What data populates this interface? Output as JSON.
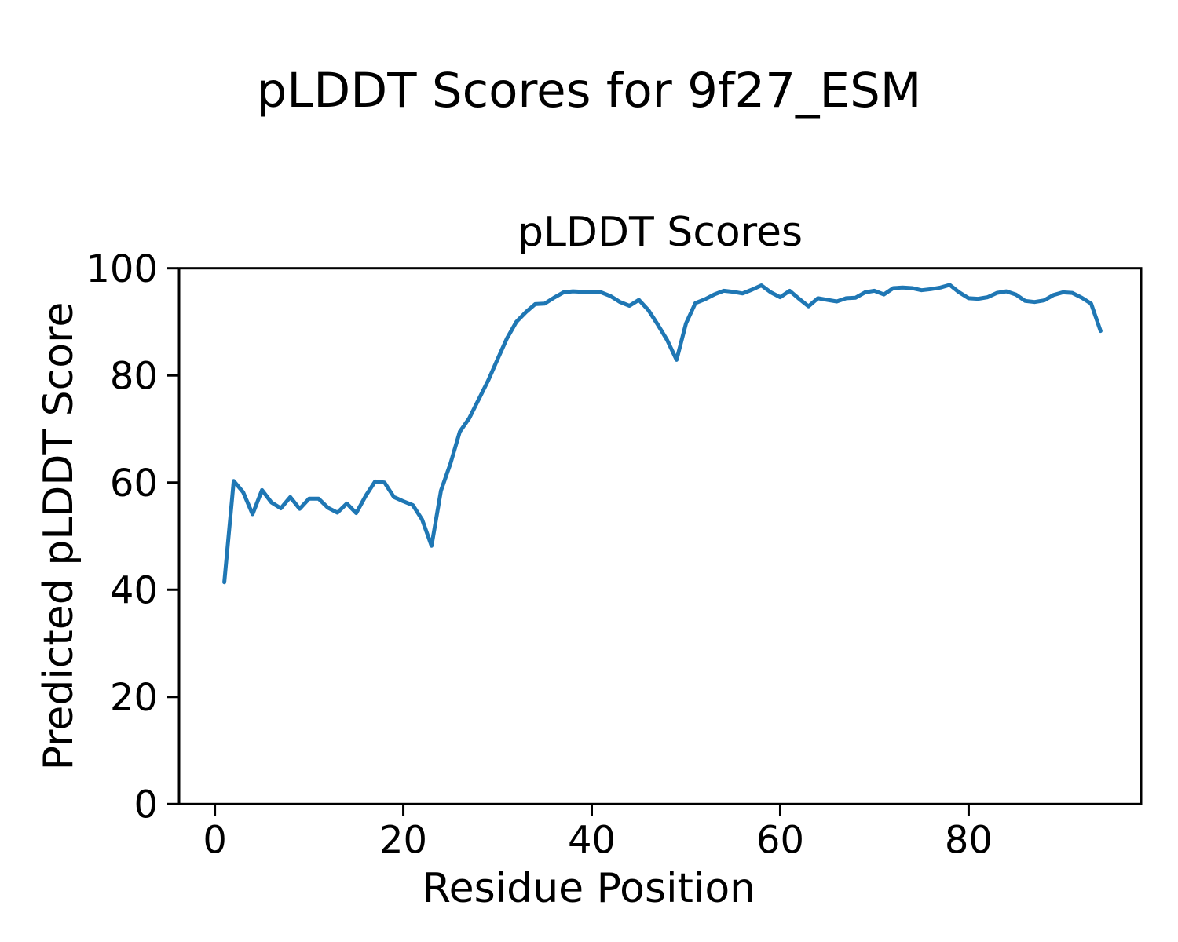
{
  "chart_data": {
    "type": "line",
    "title": "pLDDT Scores for 9f27_ESM",
    "axes_title": "pLDDT Scores",
    "xlabel": "Residue Position",
    "ylabel": "Predicted pLDDT Score",
    "x": [
      1,
      2,
      3,
      4,
      5,
      6,
      7,
      8,
      9,
      10,
      11,
      12,
      13,
      14,
      15,
      16,
      17,
      18,
      19,
      20,
      21,
      22,
      23,
      24,
      25,
      26,
      27,
      28,
      29,
      30,
      31,
      32,
      33,
      34,
      35,
      36,
      37,
      38,
      39,
      40,
      41,
      42,
      43,
      44,
      45,
      46,
      47,
      48,
      49,
      50,
      51,
      52,
      53,
      54,
      55,
      56,
      57,
      58,
      59,
      60,
      61,
      62,
      63,
      64,
      65,
      66,
      67,
      68,
      69,
      70,
      71,
      72,
      73,
      74,
      75,
      76,
      77,
      78,
      79,
      80,
      81,
      82,
      83,
      84,
      85,
      86,
      87,
      88,
      89,
      90,
      91,
      92,
      93,
      94
    ],
    "values": [
      41.4,
      60.3,
      58.2,
      54.1,
      58.6,
      56.3,
      55.2,
      57.3,
      55.1,
      57.0,
      57.0,
      55.3,
      54.4,
      56.1,
      54.3,
      57.5,
      60.2,
      60.0,
      57.3,
      56.5,
      55.8,
      53.1,
      48.2,
      58.5,
      63.5,
      69.5,
      72.0,
      75.5,
      79.0,
      83.0,
      86.9,
      90.0,
      91.8,
      93.3,
      93.4,
      94.5,
      95.5,
      95.7,
      95.6,
      95.6,
      95.5,
      94.8,
      93.7,
      93.0,
      94.1,
      92.2,
      89.5,
      86.6,
      82.9,
      89.7,
      93.5,
      94.2,
      95.1,
      95.8,
      95.6,
      95.3,
      96.0,
      96.8,
      95.5,
      94.6,
      95.8,
      94.3,
      92.9,
      94.4,
      94.1,
      93.8,
      94.4,
      94.5,
      95.5,
      95.8,
      95.1,
      96.3,
      96.4,
      96.3,
      95.9,
      96.1,
      96.4,
      96.9,
      95.5,
      94.4,
      94.3,
      94.6,
      95.4,
      95.7,
      95.1,
      93.9,
      93.7,
      94.0,
      95.0,
      95.5,
      95.4,
      94.5,
      93.4,
      88.3
    ],
    "xlim": [
      -3.8,
      98.3
    ],
    "ylim": [
      0,
      100
    ],
    "xticks": [
      0,
      20,
      40,
      60,
      80
    ],
    "yticks": [
      0,
      20,
      40,
      60,
      80,
      100
    ],
    "grid": false,
    "legend_position": "none",
    "line_color": "#1f77b4",
    "spine_color": "#000000",
    "background_color": "#ffffff",
    "text_color": "#000000"
  }
}
